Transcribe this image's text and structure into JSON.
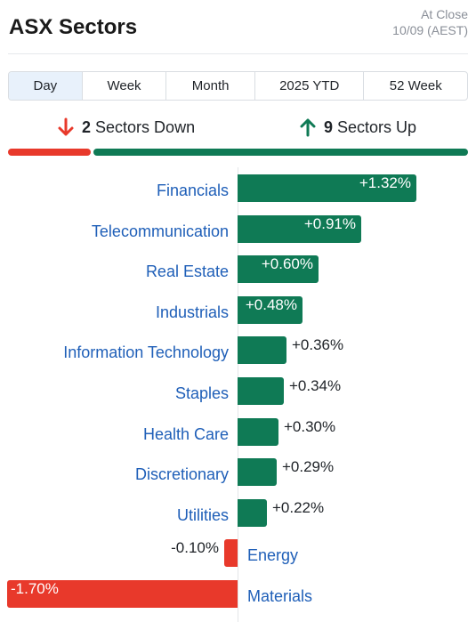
{
  "header": {
    "title": "ASX Sectors",
    "status": "At Close",
    "date": "10/09 (AEST)"
  },
  "tabs": [
    {
      "label": "Day",
      "active": true
    },
    {
      "label": "Week",
      "active": false
    },
    {
      "label": "Month",
      "active": false
    },
    {
      "label": "2025 YTD",
      "active": false
    },
    {
      "label": "52 Week",
      "active": false
    }
  ],
  "summary": {
    "down_count": "2",
    "down_label": "Sectors Down",
    "up_count": "9",
    "up_label": "Sectors Up",
    "down_color": "#e8392b",
    "up_color": "#0f7a55"
  },
  "chart_data": {
    "type": "bar",
    "orientation": "horizontal",
    "unit": "%",
    "categories": [
      "Financials",
      "Telecommunication",
      "Real Estate",
      "Industrials",
      "Information Technology",
      "Staples",
      "Health Care",
      "Discretionary",
      "Utilities",
      "Energy",
      "Materials"
    ],
    "values": [
      1.32,
      0.91,
      0.6,
      0.48,
      0.36,
      0.34,
      0.3,
      0.29,
      0.22,
      -0.1,
      -1.7
    ],
    "value_labels": [
      "+1.32%",
      "+0.91%",
      "+0.60%",
      "+0.48%",
      "+0.36%",
      "+0.34%",
      "+0.30%",
      "+0.29%",
      "+0.22%",
      "-0.10%",
      "-1.70%"
    ],
    "positive_color": "#0f7a55",
    "negative_color": "#e8392b",
    "label_color": "#1f5fb8"
  }
}
